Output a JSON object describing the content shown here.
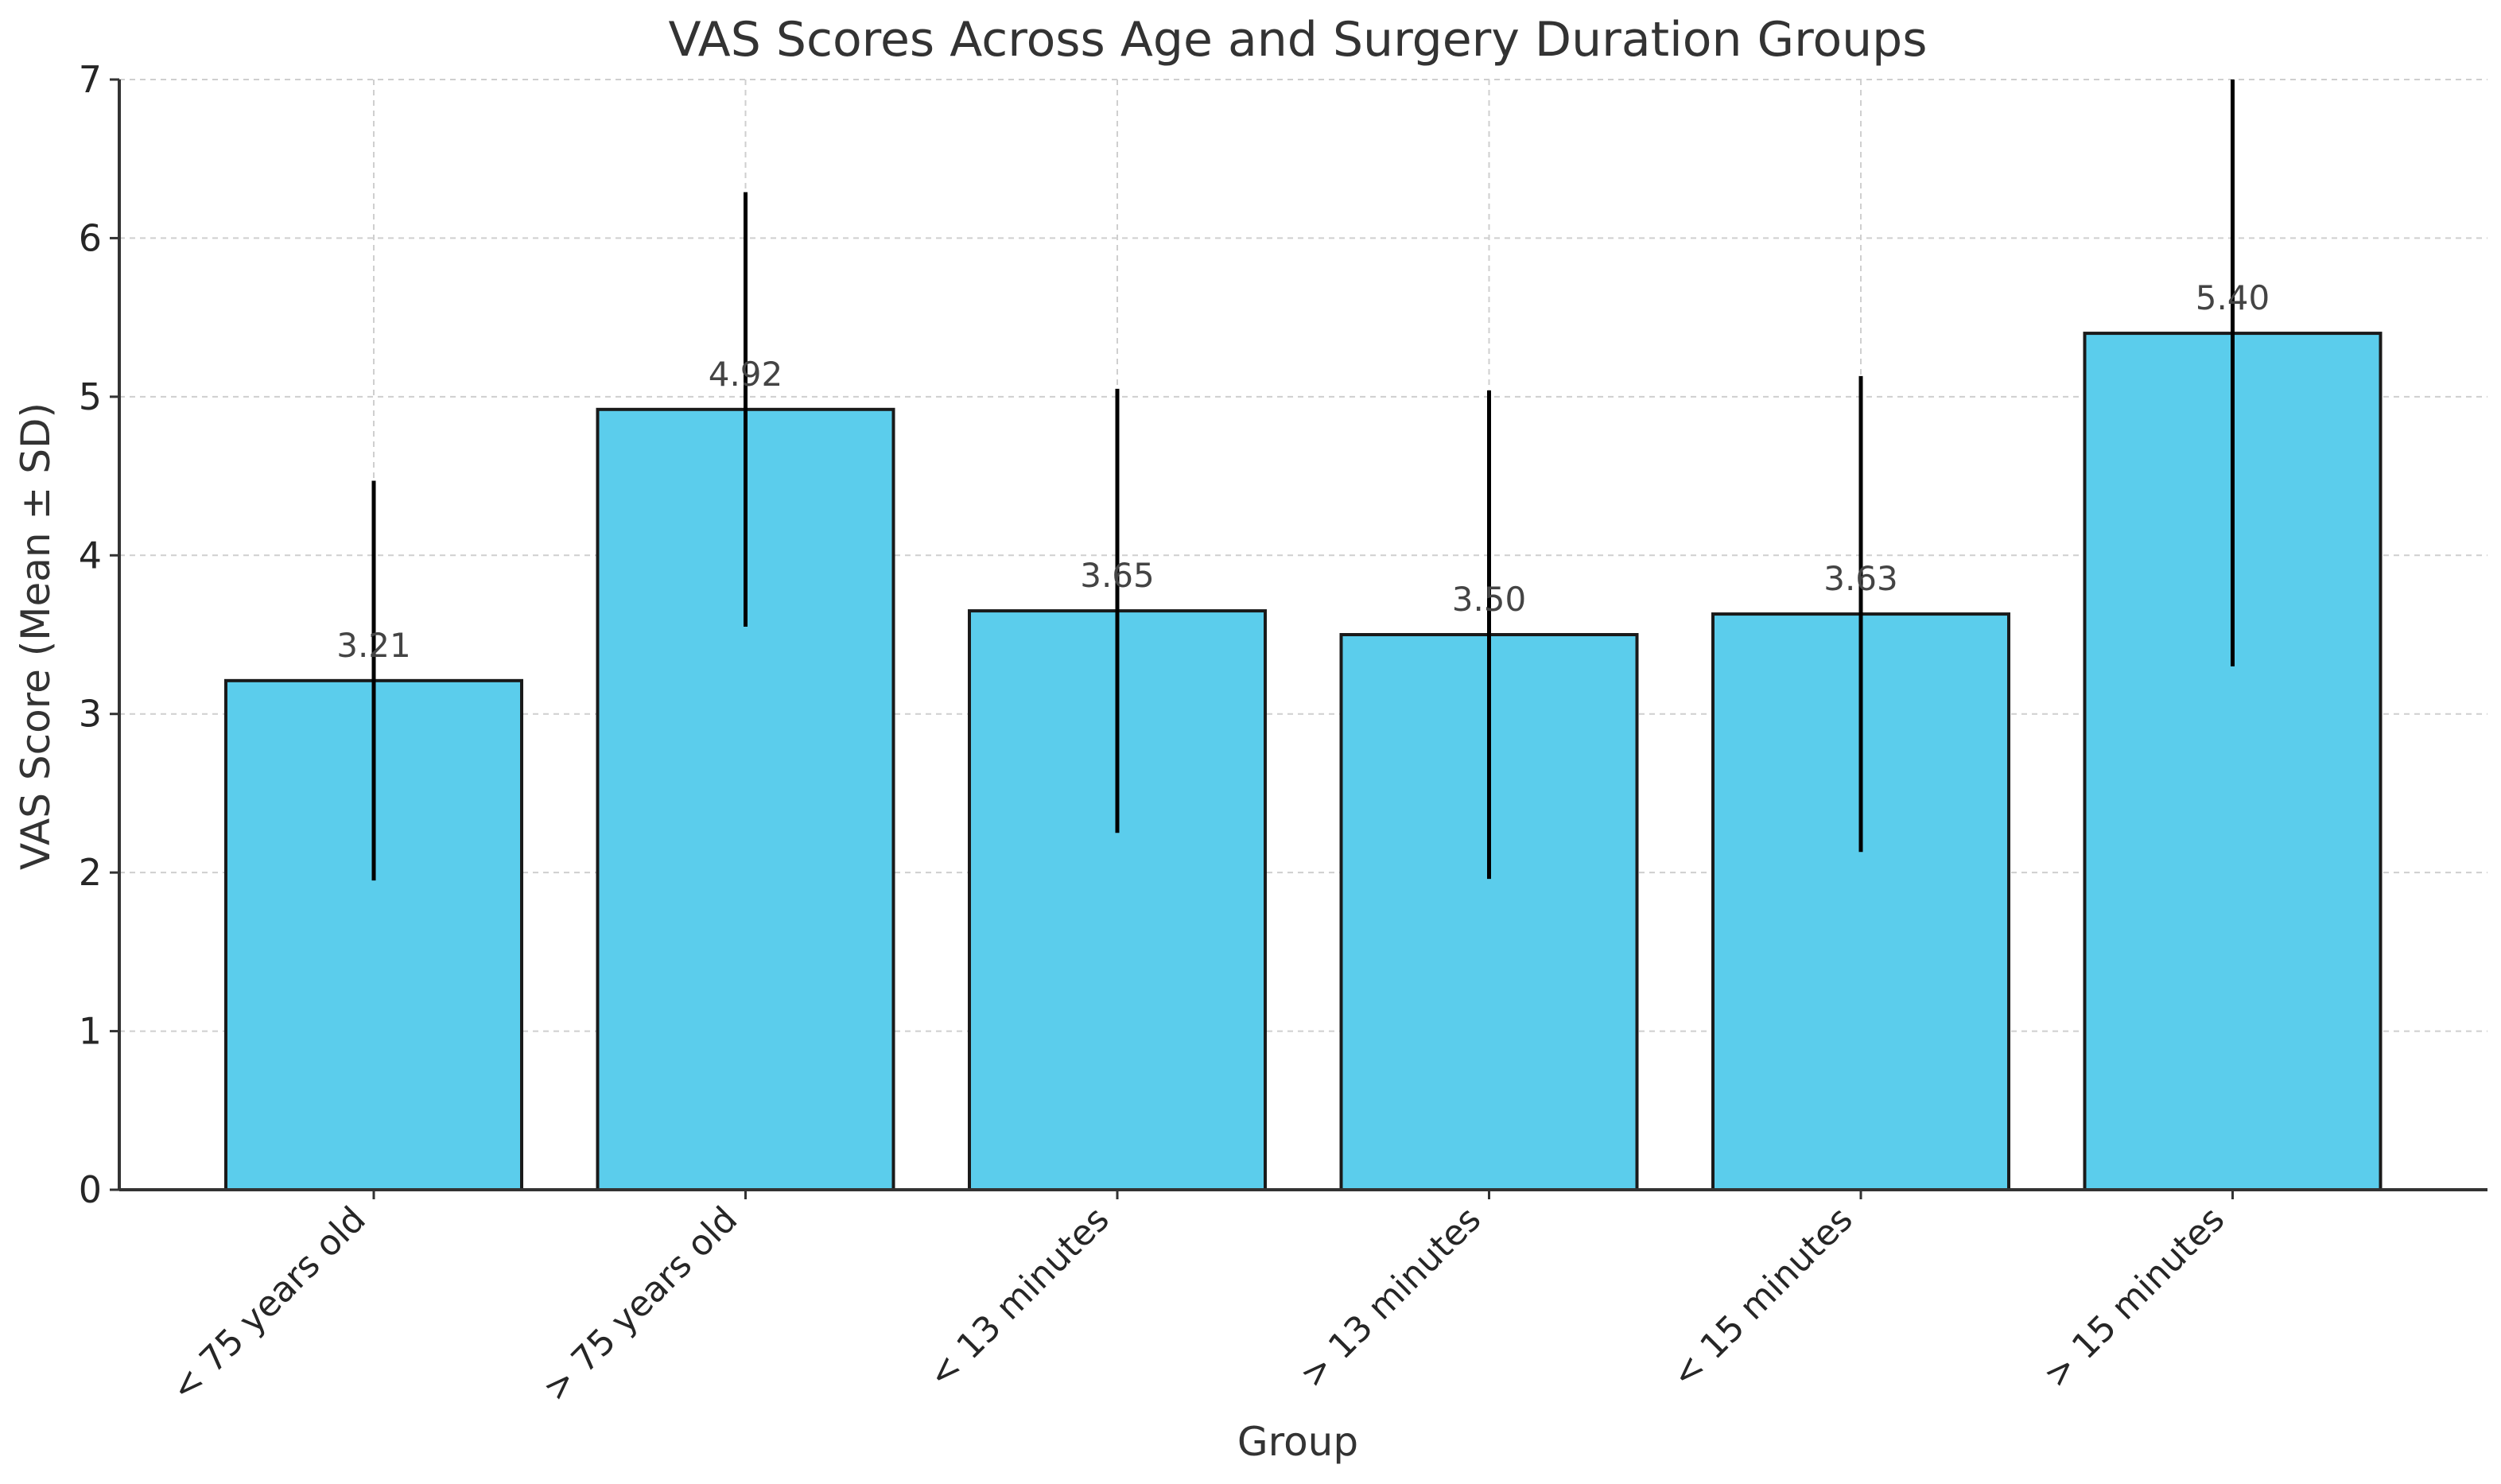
{
  "chart_data": {
    "type": "bar",
    "title": "VAS Scores Across Age and Surgery Duration Groups",
    "xlabel": "Group",
    "ylabel": "VAS Score (Mean ± SD)",
    "ylim": [
      0,
      7
    ],
    "yticks": [
      0,
      1,
      2,
      3,
      4,
      5,
      6,
      7
    ],
    "grid": true,
    "bar_color": "#5bcdec",
    "error_color": "#000000",
    "categories": [
      "< 75 years old",
      "> 75 years old",
      "< 13 minutes",
      "> 13 minutes",
      "< 15 minutes",
      "> 15 minutes"
    ],
    "values": [
      3.21,
      4.92,
      3.65,
      3.5,
      3.63,
      5.4
    ],
    "value_labels": [
      "3.21",
      "4.92",
      "3.65",
      "3.50",
      "3.63",
      "5.40"
    ],
    "errors": [
      1.26,
      1.37,
      1.4,
      1.54,
      1.5,
      2.1
    ]
  }
}
